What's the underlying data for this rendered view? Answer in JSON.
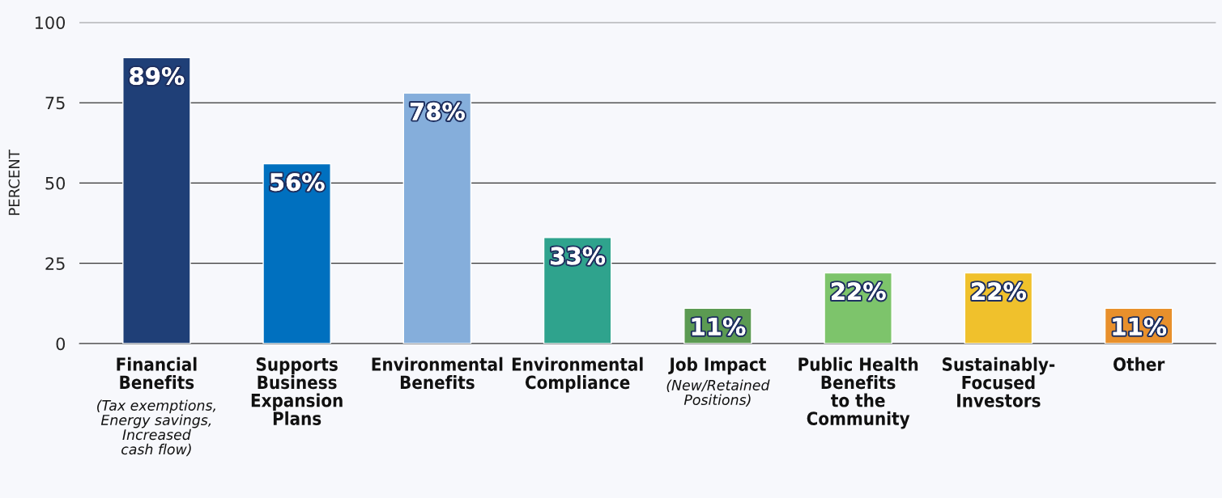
{
  "chart_data": {
    "type": "bar",
    "ylabel": "PERCENT",
    "categories": [
      "Financial\nBenefits\n(Tax exemptions,\nEnergy savings,\nIncreased\ncash flow)",
      "Supports\nBusiness\nExpansion\nPlans",
      "Environmental\nBenefits",
      "Environmental\nCompliance",
      "Job Impact\n(New/Retained\nPositions)",
      "Public Health\nBenefits\nto the\nCommunity",
      "Sustainably-\nFocused\nInvestors",
      "Other"
    ],
    "values": [
      89,
      56,
      78,
      33,
      11,
      22,
      22,
      11
    ],
    "colors": [
      "#1f3f77",
      "#0070bf",
      "#85aedb",
      "#2fa38d",
      "#5b9a52",
      "#7dc46b",
      "#f0c12c",
      "#e8902c"
    ],
    "value_labels": [
      "89%",
      "56%",
      "78%",
      "33%",
      "11%",
      "22%",
      "22%",
      "11%"
    ],
    "ylim": [
      0,
      100
    ],
    "yticks": [
      0,
      25,
      50,
      75,
      100
    ],
    "grid": "y"
  }
}
